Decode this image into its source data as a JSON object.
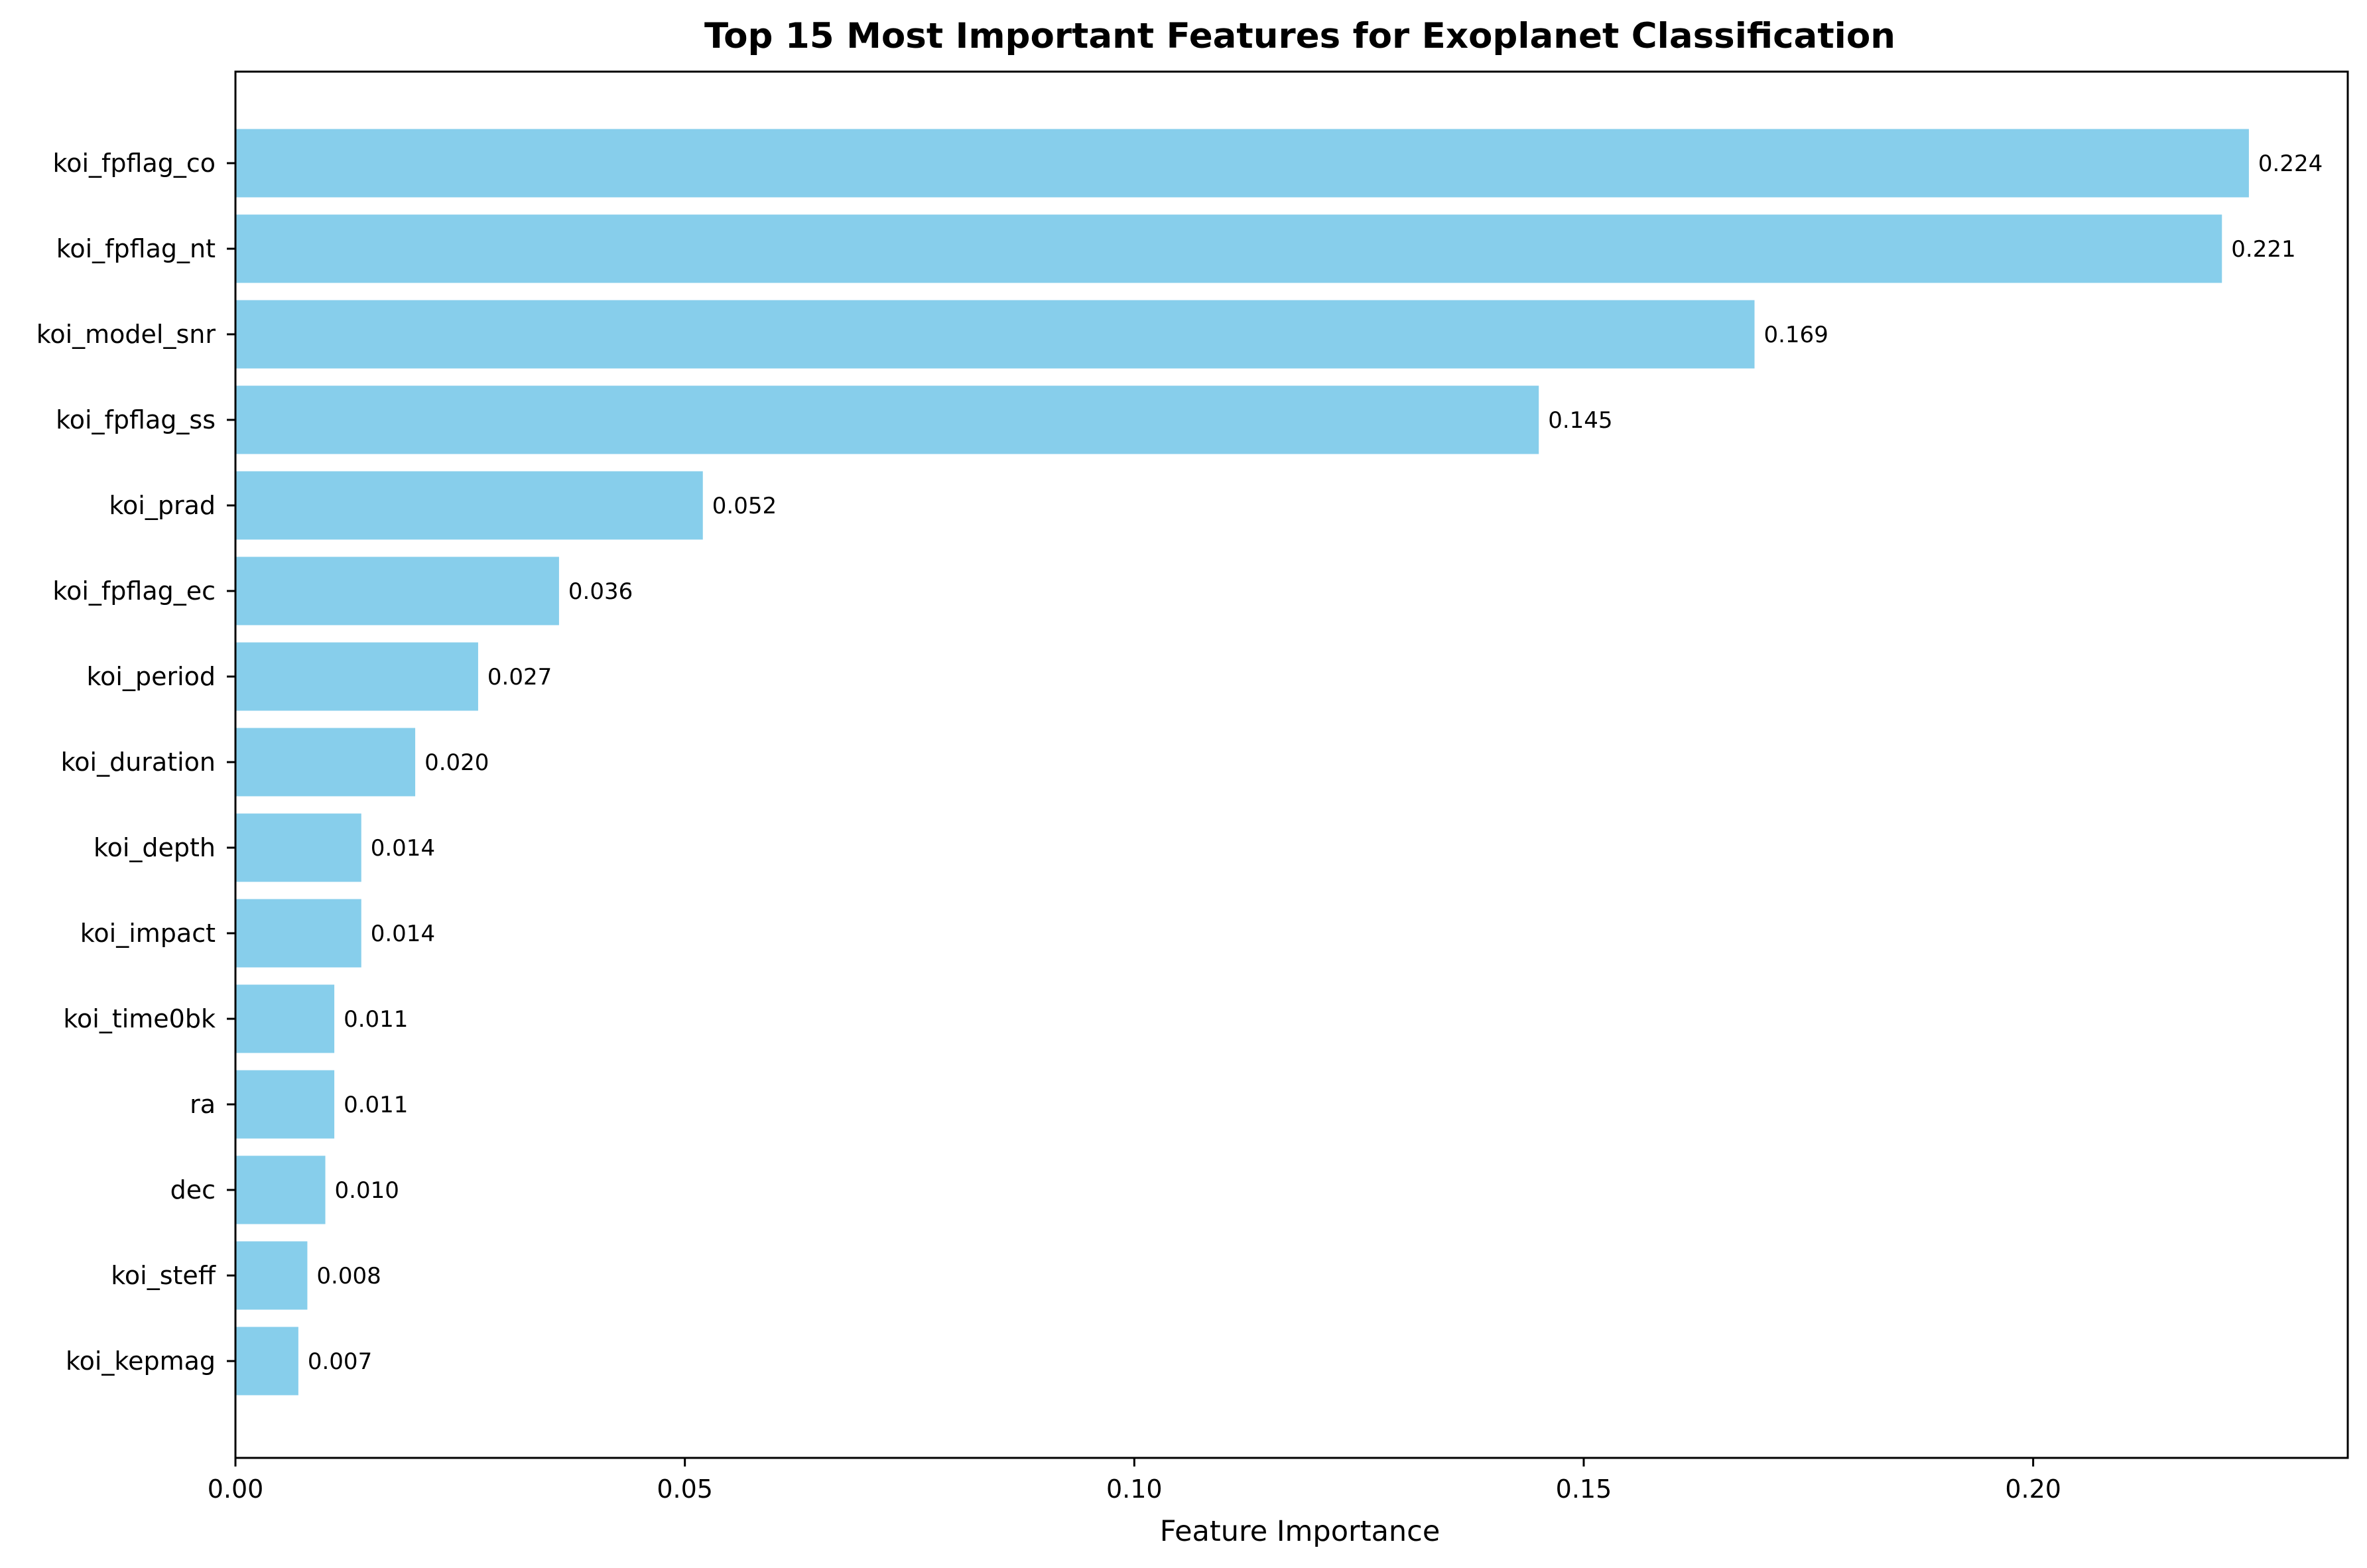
{
  "chart_data": {
    "type": "bar",
    "orientation": "horizontal",
    "title": "Top 15 Most Important Features for Exoplanet Classification",
    "xlabel": "Feature Importance",
    "ylabel": "",
    "xlim": [
      0,
      0.235
    ],
    "x_ticks": [
      0,
      0.05,
      0.1,
      0.15,
      0.2
    ],
    "x_tick_labels": [
      "0.00",
      "0.05",
      "0.10",
      "0.15",
      "0.20"
    ],
    "grid": false,
    "legend": "none",
    "bar_color": "#87CEEB",
    "categories": [
      "koi_fpflag_co",
      "koi_fpflag_nt",
      "koi_model_snr",
      "koi_fpflag_ss",
      "koi_prad",
      "koi_fpflag_ec",
      "koi_period",
      "koi_duration",
      "koi_depth",
      "koi_impact",
      "koi_time0bk",
      "ra",
      "dec",
      "koi_steff",
      "koi_kepmag"
    ],
    "values": [
      0.224,
      0.221,
      0.169,
      0.145,
      0.052,
      0.036,
      0.027,
      0.02,
      0.014,
      0.014,
      0.011,
      0.011,
      0.01,
      0.008,
      0.007
    ],
    "value_labels": [
      "0.224",
      "0.221",
      "0.169",
      "0.145",
      "0.052",
      "0.036",
      "0.027",
      "0.020",
      "0.014",
      "0.014",
      "0.011",
      "0.011",
      "0.010",
      "0.008",
      "0.007"
    ]
  }
}
